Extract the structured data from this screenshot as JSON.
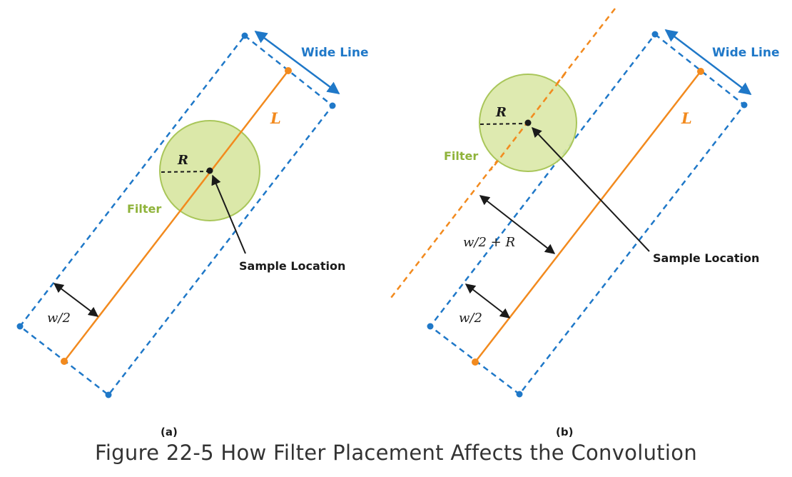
{
  "colors": {
    "blue": "#1f78c8",
    "orange": "#f28a1e",
    "filter_fill": "#dbe8a9",
    "filter_stroke": "#a9c65a",
    "filter_text": "#8fb33a",
    "dark": "#1a1a1a"
  },
  "panel_a": {
    "sub_label": "(a)",
    "wide_line_label": "Wide Line",
    "line_label": "L",
    "radius_label": "R",
    "filter_label": "Filter",
    "sample_label": "Sample Location",
    "half_width_label": "w/2"
  },
  "panel_b": {
    "sub_label": "(b)",
    "wide_line_label": "Wide Line",
    "line_label": "L",
    "radius_label": "R",
    "filter_label": "Filter",
    "sample_label": "Sample Location",
    "half_width_label": "w/2",
    "expanded_label": "w/2 + R"
  },
  "caption": "Figure 22-5 How Filter Placement Affects the Convolution"
}
